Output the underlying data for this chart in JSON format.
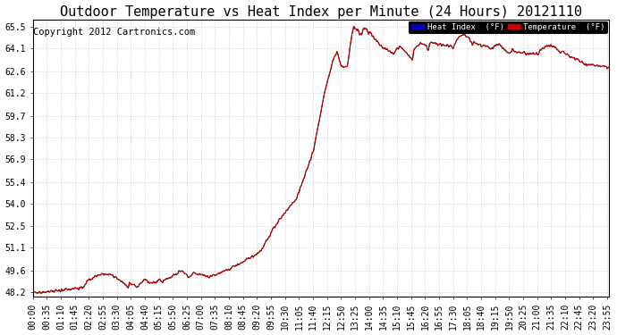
{
  "title": "Outdoor Temperature vs Heat Index per Minute (24 Hours) 20121110",
  "copyright": "Copyright 2012 Cartronics.com",
  "legend_heat_label": "Heat Index  (°F)",
  "legend_temp_label": "Temperature  (°F)",
  "legend_heat_bg": "#0000bb",
  "legend_temp_bg": "#cc0000",
  "legend_text_color": "#ffffff",
  "line_color_heat": "#000000",
  "line_color_temp": "#cc0000",
  "background_color": "#ffffff",
  "plot_bg_color": "#ffffff",
  "grid_color": "#bbbbbb",
  "ytick_labels": [
    "48.2",
    "49.6",
    "51.1",
    "52.5",
    "54.0",
    "55.4",
    "56.9",
    "58.3",
    "59.7",
    "61.2",
    "62.6",
    "64.1",
    "65.5"
  ],
  "ytick_values": [
    48.2,
    49.6,
    51.1,
    52.5,
    54.0,
    55.4,
    56.9,
    58.3,
    59.7,
    61.2,
    62.6,
    64.1,
    65.5
  ],
  "ymin": 47.9,
  "ymax": 66.0,
  "xtick_labels": [
    "00:00",
    "00:35",
    "01:10",
    "01:45",
    "02:20",
    "02:55",
    "03:30",
    "04:05",
    "04:40",
    "05:15",
    "05:50",
    "06:25",
    "07:00",
    "07:35",
    "08:10",
    "08:45",
    "09:20",
    "09:55",
    "10:30",
    "11:05",
    "11:40",
    "12:15",
    "12:50",
    "13:25",
    "14:00",
    "14:35",
    "15:10",
    "15:45",
    "16:20",
    "16:55",
    "17:30",
    "18:05",
    "18:40",
    "19:15",
    "19:50",
    "20:25",
    "21:00",
    "21:35",
    "22:10",
    "22:45",
    "23:20",
    "23:55"
  ],
  "num_minutes": 1440,
  "title_fontsize": 11,
  "tick_fontsize": 7,
  "copyright_fontsize": 7.5
}
